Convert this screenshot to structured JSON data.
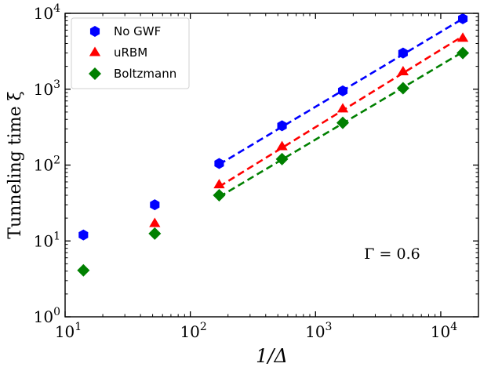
{
  "chart_data": {
    "type": "scatter",
    "x_scale": "log",
    "y_scale": "log",
    "xlim": [
      10,
      20000
    ],
    "ylim": [
      1,
      10000
    ],
    "xlabel": "1/Δ",
    "ylabel": "Tunneling time ξ",
    "grid": false,
    "legend_position": "top-left",
    "x_ticks": [
      {
        "value": 10,
        "base": "10",
        "exp": "1"
      },
      {
        "value": 100,
        "base": "10",
        "exp": "2"
      },
      {
        "value": 1000,
        "base": "10",
        "exp": "3"
      },
      {
        "value": 10000,
        "base": "10",
        "exp": "4"
      }
    ],
    "y_ticks": [
      {
        "value": 1,
        "base": "10",
        "exp": "0"
      },
      {
        "value": 10,
        "base": "10",
        "exp": "1"
      },
      {
        "value": 100,
        "base": "10",
        "exp": "2"
      },
      {
        "value": 1000,
        "base": "10",
        "exp": "3"
      },
      {
        "value": 10000,
        "base": "10",
        "exp": "4"
      }
    ],
    "annotation": "Γ = 0.6",
    "series": [
      {
        "name": "No GWF",
        "color": "#0000ff",
        "marker": "hexagon",
        "x": [
          14,
          52,
          170,
          540,
          1650,
          5000,
          15000
        ],
        "y": [
          12,
          30,
          105,
          330,
          950,
          3000,
          8500
        ],
        "fit": {
          "x": [
            170,
            15000
          ],
          "y": [
            102,
            8500
          ]
        }
      },
      {
        "name": "uRBM",
        "color": "#ff0000",
        "marker": "triangle",
        "x": [
          52,
          170,
          540,
          1650,
          5000,
          15000
        ],
        "y": [
          17,
          55,
          175,
          550,
          1700,
          4700
        ],
        "fit": {
          "x": [
            170,
            15000
          ],
          "y": [
            52,
            5000
          ]
        }
      },
      {
        "name": "Boltzmann",
        "color": "#008000",
        "marker": "diamond",
        "x": [
          14,
          52,
          170,
          540,
          1650,
          5000,
          15000
        ],
        "y": [
          4.1,
          12.5,
          40,
          120,
          360,
          1030,
          3000
        ],
        "fit": {
          "x": [
            170,
            15000
          ],
          "y": [
            38,
            3100
          ]
        }
      }
    ]
  }
}
